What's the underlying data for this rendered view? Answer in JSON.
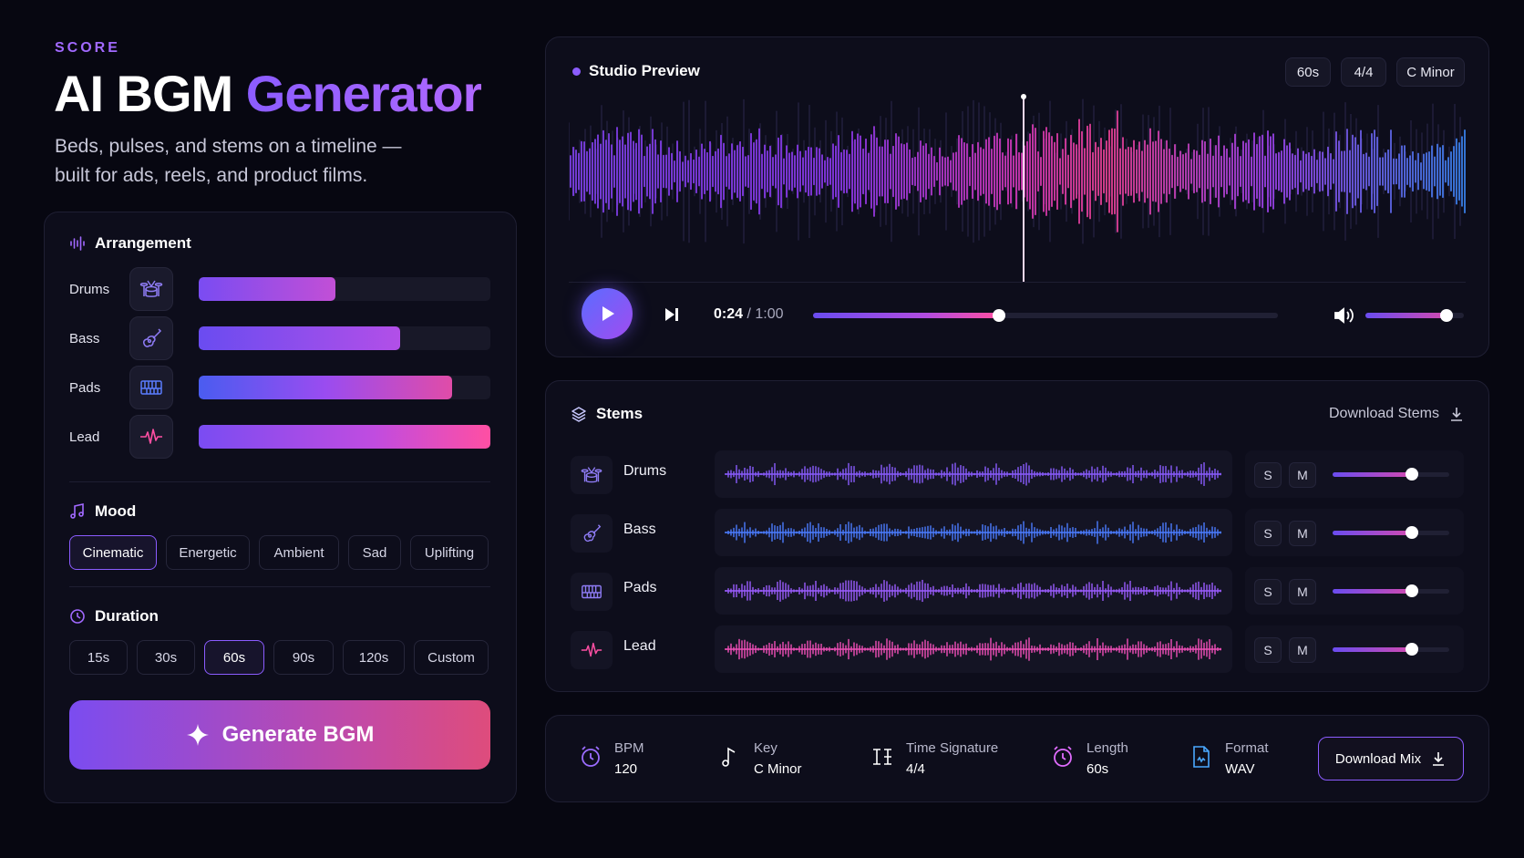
{
  "brand": "SCORE",
  "title": {
    "main": "AI BGM",
    "accent": "Generator"
  },
  "subtitle": "Beds, pulses, and stems on a timeline — built for ads, reels, and product films.",
  "arrangement": {
    "heading": "Arrangement",
    "rows": [
      {
        "label": "Drums",
        "level": 0.47
      },
      {
        "label": "Bass",
        "level": 0.69
      },
      {
        "label": "Pads",
        "level": 0.87
      },
      {
        "label": "Lead",
        "level": 1.0
      }
    ]
  },
  "mood": {
    "heading": "Mood",
    "options": [
      "Cinematic",
      "Energetic",
      "Ambient",
      "Sad",
      "Uplifting"
    ],
    "selected": "Cinematic"
  },
  "duration": {
    "heading": "Duration",
    "options": [
      "15s",
      "30s",
      "60s",
      "90s",
      "120s",
      "Custom"
    ],
    "selected": "60s"
  },
  "generate_label": "Generate BGM",
  "preview": {
    "title": "Studio Preview",
    "tags": [
      "60s",
      "4/4",
      "C Minor"
    ],
    "current_time": "0:24",
    "total_time": "/ 1:00",
    "progress": 0.4,
    "volume": 0.82
  },
  "stems": {
    "title": "Stems",
    "download_label": "Download Stems",
    "solo_label": "S",
    "mute_label": "M",
    "rows": [
      {
        "name": "Drums",
        "volume": 0.68
      },
      {
        "name": "Bass",
        "volume": 0.68
      },
      {
        "name": "Pads",
        "volume": 0.68
      },
      {
        "name": "Lead",
        "volume": 0.68
      }
    ]
  },
  "meta": [
    {
      "key": "BPM",
      "value": "120"
    },
    {
      "key": "Key",
      "value": "C Minor"
    },
    {
      "key": "Time Signature",
      "value": "4/4"
    },
    {
      "key": "Length",
      "value": "60s"
    },
    {
      "key": "Format",
      "value": "WAV"
    }
  ],
  "download_mix_label": "Download Mix",
  "colors": {
    "accent": "#8b5cff",
    "pink": "#ff4fa3",
    "blue": "#3d7bff",
    "bg": "#070711"
  }
}
